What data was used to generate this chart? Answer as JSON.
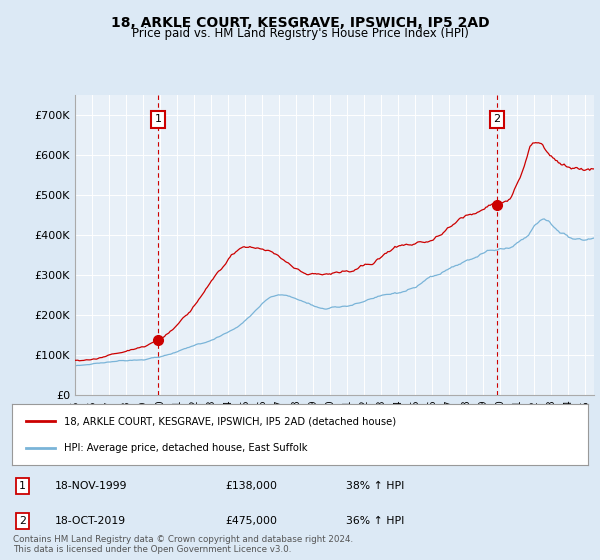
{
  "title": "18, ARKLE COURT, KESGRAVE, IPSWICH, IP5 2AD",
  "subtitle": "Price paid vs. HM Land Registry's House Price Index (HPI)",
  "bg_color": "#dce9f5",
  "plot_bg_color": "#e8f0f8",
  "ylim": [
    0,
    750000
  ],
  "yticks": [
    0,
    100000,
    200000,
    300000,
    400000,
    500000,
    600000,
    700000
  ],
  "ytick_labels": [
    "£0",
    "£100K",
    "£200K",
    "£300K",
    "£400K",
    "£500K",
    "£600K",
    "£700K"
  ],
  "sale1_date_num": 1999.88,
  "sale1_price": 138000,
  "sale2_date_num": 2019.79,
  "sale2_price": 475000,
  "sale1_date_str": "18-NOV-1999",
  "sale1_price_str": "£138,000",
  "sale1_hpi_str": "38% ↑ HPI",
  "sale2_date_str": "18-OCT-2019",
  "sale2_price_str": "£475,000",
  "sale2_hpi_str": "36% ↑ HPI",
  "legend_line1": "18, ARKLE COURT, KESGRAVE, IPSWICH, IP5 2AD (detached house)",
  "legend_line2": "HPI: Average price, detached house, East Suffolk",
  "footer": "Contains HM Land Registry data © Crown copyright and database right 2024.\nThis data is licensed under the Open Government Licence v3.0.",
  "red_color": "#cc0000",
  "blue_color": "#7ab4d8",
  "vline_color": "#cc0000",
  "xmin": 1995.0,
  "xmax": 2025.5
}
